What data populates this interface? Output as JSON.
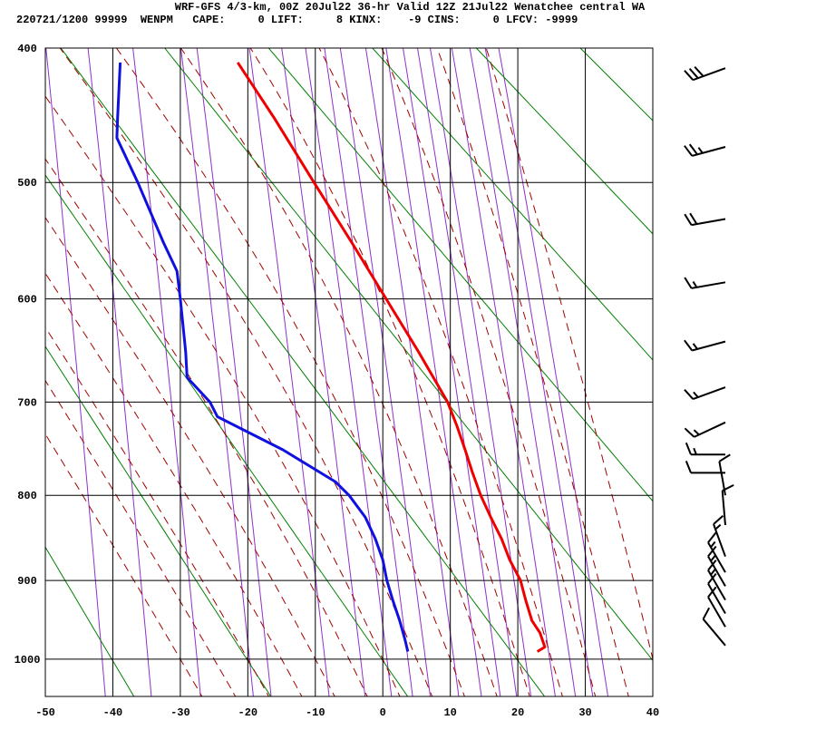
{
  "header": {
    "title": "WRF-GFS 4/3-km, 00Z 20Jul22 36-hr Valid 12Z 21Jul22 Wenatchee central WA",
    "stats": "220721/1200 99999  WENPM   CAPE:     0 LIFT:     8 KINX:    -9 CINS:     0 LFCV: -9999"
  },
  "chart_data": {
    "type": "stuve",
    "xlim": [
      -50,
      40
    ],
    "xticks": [
      -50,
      -40,
      -30,
      -20,
      -10,
      0,
      10,
      20,
      30,
      40
    ],
    "ylim": [
      400,
      1050
    ],
    "yticks": [
      400,
      500,
      600,
      700,
      800,
      900,
      1000
    ],
    "y_scale": "p^0.286",
    "grid": true,
    "series": [
      {
        "color": "#ee0000",
        "pressure": [
          990,
          984,
          966,
          950,
          925,
          900,
          875,
          850,
          825,
          800,
          775,
          750,
          725,
          700,
          650,
          600,
          550,
          500,
          450,
          410
        ],
        "values": [
          22.9,
          24.0,
          23.3,
          22.1,
          21.2,
          20.4,
          18.8,
          17.6,
          16.0,
          14.5,
          13.3,
          12.2,
          11.0,
          9.6,
          5.3,
          0.5,
          -4.6,
          -10.2,
          -16.1,
          -21.5
        ]
      },
      {
        "color": "#1010e0",
        "pressure": [
          990,
          975,
          950,
          925,
          900,
          875,
          850,
          825,
          800,
          785,
          750,
          715,
          700,
          675,
          650,
          600,
          575,
          550,
          500,
          465,
          450,
          410
        ],
        "values": [
          3.7,
          3.3,
          2.5,
          1.5,
          0.6,
          0.0,
          -1.1,
          -2.6,
          -5.0,
          -7.0,
          -14.8,
          -24.5,
          -25.6,
          -29.0,
          -29.2,
          -30.0,
          -30.5,
          -32.5,
          -36.3,
          -39.4,
          -39.3,
          -38.9
        ]
      }
    ],
    "winds": {
      "pressure": [
        414,
        472,
        530,
        585,
        640,
        685,
        721,
        755,
        775,
        800,
        834,
        871,
        890,
        907,
        924,
        941,
        958,
        982
      ],
      "direction": [
        250,
        255,
        260,
        260,
        255,
        250,
        245,
        270,
        270,
        350,
        355,
        340,
        330,
        330,
        330,
        330,
        330,
        320
      ],
      "speed": [
        30,
        25,
        20,
        15,
        15,
        15,
        15,
        15,
        10,
        10,
        10,
        15,
        15,
        15,
        15,
        10,
        10,
        10
      ]
    }
  }
}
